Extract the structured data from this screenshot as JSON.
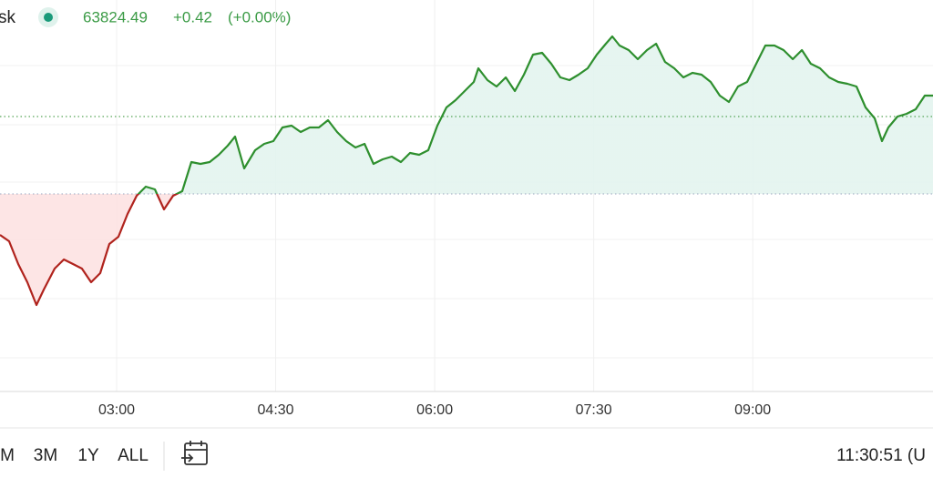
{
  "header": {
    "symbol": "sk",
    "price": "63824.49",
    "change": "+0.42",
    "change_pct": "(+0.00%)"
  },
  "chart_data": {
    "type": "line",
    "x": [
      1.9,
      1.986,
      2.072,
      2.158,
      2.244,
      2.313,
      2.416,
      2.502,
      2.588,
      2.673,
      2.759,
      2.845,
      2.931,
      3.017,
      3.103,
      3.189,
      3.275,
      3.361,
      3.447,
      3.533,
      3.619,
      3.705,
      3.791,
      3.877,
      3.963,
      4.048,
      4.117,
      4.203,
      4.306,
      4.392,
      4.478,
      4.564,
      4.65,
      4.736,
      4.822,
      4.908,
      4.994,
      5.08,
      5.166,
      5.252,
      5.338,
      5.423,
      5.509,
      5.595,
      5.681,
      5.767,
      5.853,
      5.939,
      6.025,
      6.111,
      6.197,
      6.283,
      6.369,
      6.412,
      6.498,
      6.584,
      6.67,
      6.756,
      6.841,
      6.927,
      7.013,
      7.099,
      7.185,
      7.271,
      7.357,
      7.443,
      7.529,
      7.615,
      7.675,
      7.744,
      7.83,
      7.916,
      8.002,
      8.088,
      8.173,
      8.259,
      8.345,
      8.431,
      8.517,
      8.603,
      8.689,
      8.775,
      8.861,
      8.947,
      9.033,
      9.119,
      9.205,
      9.291,
      9.377,
      9.463,
      9.548,
      9.634,
      9.72,
      9.806,
      9.892,
      9.978,
      10.064,
      10.15,
      10.219,
      10.279,
      10.365,
      10.451,
      10.537,
      10.623,
      10.7
    ],
    "values": [
      63744,
      63730,
      63680,
      63640,
      63590,
      63624,
      63670,
      63690,
      63680,
      63670,
      63640,
      63660,
      63724,
      63740,
      63790,
      63830,
      63850,
      63844,
      63800,
      63830,
      63840,
      63904,
      63900,
      63904,
      63920,
      63940,
      63960,
      63890,
      63930,
      63944,
      63950,
      63980,
      63984,
      63970,
      63980,
      63980,
      63996,
      63970,
      63950,
      63936,
      63944,
      63900,
      63910,
      63916,
      63904,
      63924,
      63920,
      63930,
      63984,
      64024,
      64040,
      64060,
      64080,
      64110,
      64084,
      64070,
      64090,
      64060,
      64096,
      64140,
      64144,
      64120,
      64090,
      64084,
      64096,
      64110,
      64140,
      64164,
      64180,
      64160,
      64150,
      64130,
      64150,
      64164,
      64124,
      64110,
      64090,
      64100,
      64096,
      64080,
      64050,
      64036,
      64070,
      64080,
      64120,
      64160,
      64160,
      64150,
      64130,
      64150,
      64120,
      64110,
      64090,
      64080,
      64076,
      64070,
      64024,
      64000,
      63950,
      63980,
      64004,
      64010,
      64020,
      64050,
      64050
    ],
    "baseline": 63834,
    "reference_line": 64004,
    "color_above": "#2e8f2e",
    "color_below": "#b0231d",
    "fill_above": "#e3f4ef",
    "fill_below": "#fde2e2",
    "xlim": [
      1.9,
      10.7
    ],
    "ylim": [
      63400,
      64260
    ],
    "xticks": [
      {
        "value": 3,
        "label": "03:00"
      },
      {
        "value": 4.5,
        "label": "04:30"
      },
      {
        "value": 6,
        "label": "06:00"
      },
      {
        "value": 7.5,
        "label": "07:30"
      },
      {
        "value": 9,
        "label": "09:00"
      }
    ],
    "grid": true
  },
  "footer": {
    "ranges": [
      "M",
      "3M",
      "1Y",
      "ALL"
    ],
    "clock": "11:30:51 (U"
  }
}
